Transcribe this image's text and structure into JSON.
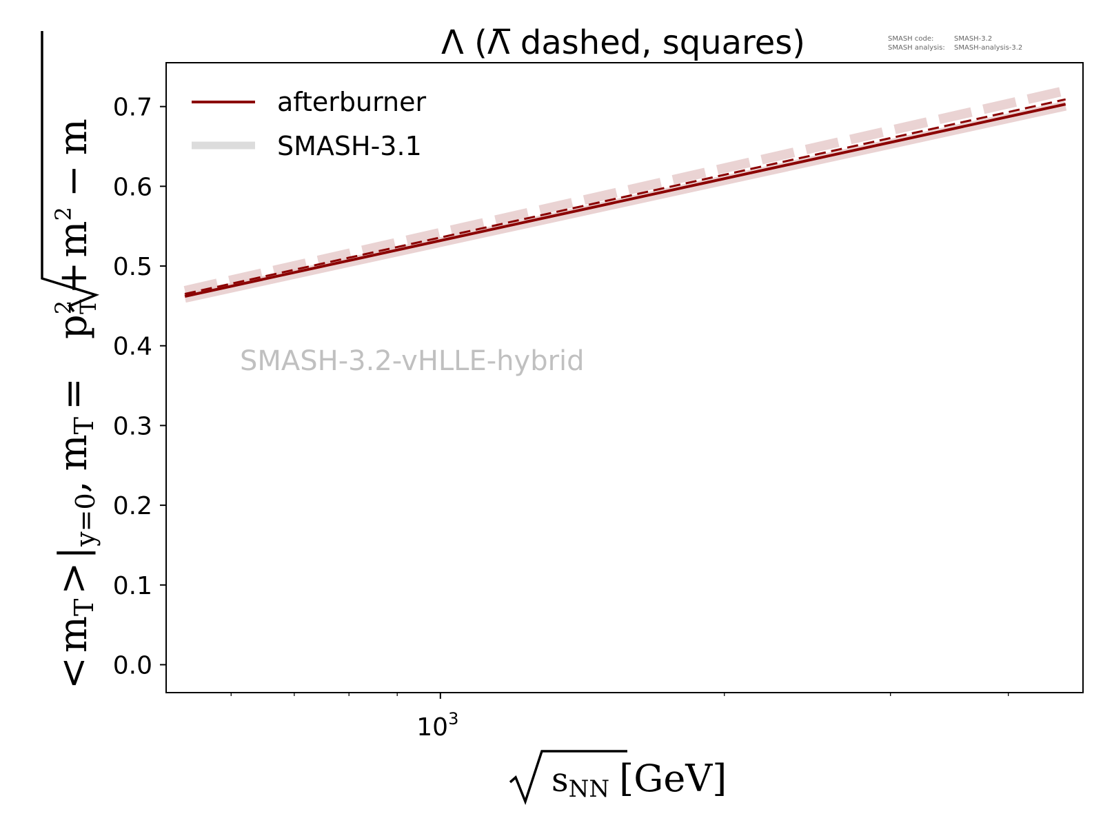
{
  "chart_data": {
    "type": "line",
    "title": "Λ (Λ̅ dashed, squares)",
    "info": {
      "code_label": "SMASH code:",
      "code_value": "SMASH-3.2",
      "analysis_label": "SMASH analysis:",
      "analysis_value": "SMASH-analysis-3.2"
    },
    "watermark": "SMASH-3.2-vHLLE-hybrid",
    "xlabel": {
      "radicand": "s",
      "subscript": "NN",
      "unit": "[GeV]"
    },
    "ylabel": {
      "open": "<",
      "m1": "m",
      "sub_T1": "T",
      "close": ">",
      "bar": "|",
      "sub_y0": "y=0",
      "comma": ",",
      "m2": "m",
      "sub_T2": "T",
      "eq": "=",
      "p": "p",
      "sup_2a": "2",
      "sub_T3": "T",
      "plus": "+",
      "m3": "m",
      "sup_2b": "2",
      "minus": "−",
      "m4": "m"
    },
    "x_scale": "log",
    "xlim": [
      512,
      4800
    ],
    "ylim": [
      -0.035,
      0.755
    ],
    "x_major_ticks": [
      {
        "value": 1000,
        "base": "10",
        "exp": "3"
      }
    ],
    "x_minor_ticks": [
      600,
      700,
      800,
      900,
      2000,
      3000,
      4000
    ],
    "y_ticks": [
      {
        "value": 0.0,
        "label": "0.0"
      },
      {
        "value": 0.1,
        "label": "0.1"
      },
      {
        "value": 0.2,
        "label": "0.2"
      },
      {
        "value": 0.3,
        "label": "0.3"
      },
      {
        "value": 0.4,
        "label": "0.4"
      },
      {
        "value": 0.5,
        "label": "0.5"
      },
      {
        "value": 0.6,
        "label": "0.6"
      },
      {
        "value": 0.7,
        "label": "0.7"
      }
    ],
    "grid": false,
    "legend_position": "upper-left",
    "legend": [
      {
        "label": "afterburner",
        "color": "#8b0000"
      },
      {
        "label": "SMASH-3.1",
        "color": "#dcdcdc"
      }
    ],
    "series": [
      {
        "name": "afterburner",
        "particle": "Λ",
        "x": [
          536,
          4600
        ],
        "y": [
          0.462,
          0.703
        ],
        "color": "#8b0000",
        "dashed": false,
        "band": false
      },
      {
        "name": "afterburner",
        "particle": "Λ̅",
        "x": [
          536,
          4600
        ],
        "y": [
          0.465,
          0.709
        ],
        "color": "#8b0000",
        "dashed": true,
        "band": false
      },
      {
        "name": "SMASH-3.1",
        "particle": "Λ",
        "x": [
          536,
          4600
        ],
        "y": [
          0.46,
          0.701
        ],
        "color": "#e3c4c4",
        "dashed": false,
        "band": true
      },
      {
        "name": "SMASH-3.1",
        "particle": "Λ̅",
        "x": [
          536,
          4600
        ],
        "y": [
          0.469,
          0.72
        ],
        "color": "#e3c4c4",
        "dashed": true,
        "band": true
      }
    ]
  }
}
